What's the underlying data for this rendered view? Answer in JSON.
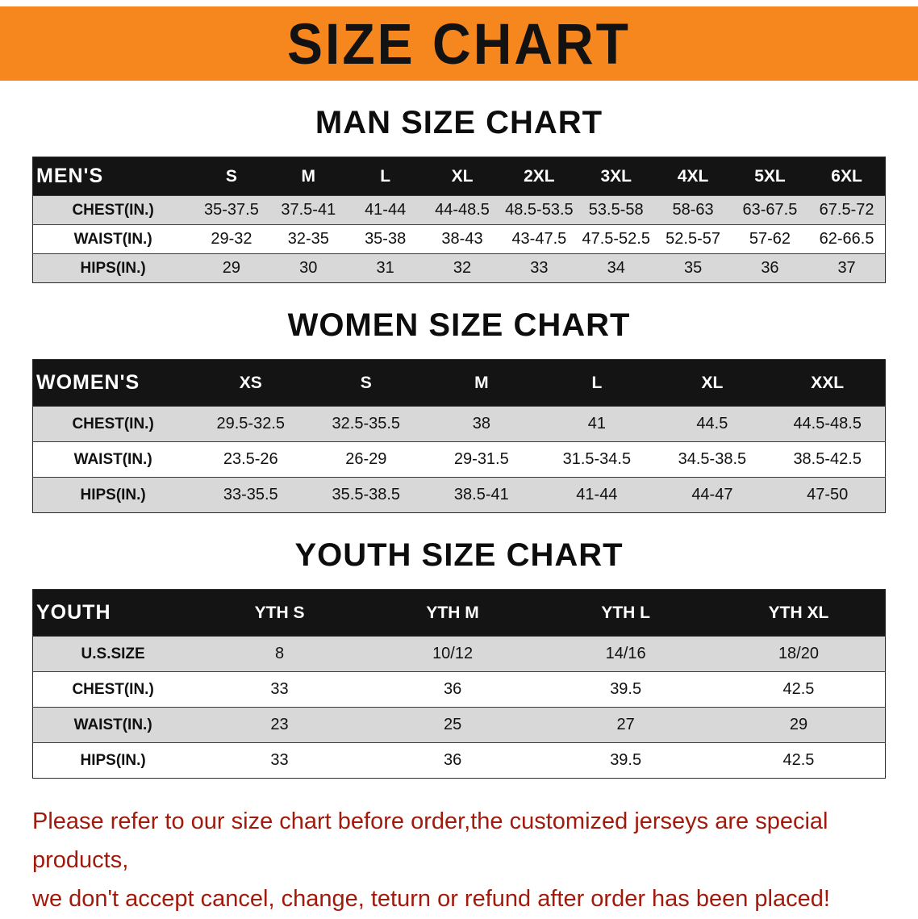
{
  "banner": {
    "title": "SIZE CHART"
  },
  "colors": {
    "banner_bg": "#f6871e",
    "table_header_bg": "#141414",
    "row_shade_bg": "#d8d8d8",
    "disclaimer_text": "#a11a0c"
  },
  "chart_data": [
    {
      "type": "table",
      "title": "MAN SIZE CHART",
      "header_label": "MEN'S",
      "columns": [
        "S",
        "M",
        "L",
        "XL",
        "2XL",
        "3XL",
        "4XL",
        "5XL",
        "6XL"
      ],
      "rows": [
        {
          "label": "CHEST(IN.)",
          "values": [
            "35-37.5",
            "37.5-41",
            "41-44",
            "44-48.5",
            "48.5-53.5",
            "53.5-58",
            "58-63",
            "63-67.5",
            "67.5-72"
          ]
        },
        {
          "label": "WAIST(IN.)",
          "values": [
            "29-32",
            "32-35",
            "35-38",
            "38-43",
            "43-47.5",
            "47.5-52.5",
            "52.5-57",
            "57-62",
            "62-66.5"
          ]
        },
        {
          "label": "HIPS(IN.)",
          "values": [
            "29",
            "30",
            "31",
            "32",
            "33",
            "34",
            "35",
            "36",
            "37"
          ]
        }
      ]
    },
    {
      "type": "table",
      "title": "WOMEN SIZE CHART",
      "header_label": "WOMEN'S",
      "columns": [
        "XS",
        "S",
        "M",
        "L",
        "XL",
        "XXL"
      ],
      "rows": [
        {
          "label": "CHEST(IN.)",
          "values": [
            "29.5-32.5",
            "32.5-35.5",
            "38",
            "41",
            "44.5",
            "44.5-48.5"
          ]
        },
        {
          "label": "WAIST(IN.)",
          "values": [
            "23.5-26",
            "26-29",
            "29-31.5",
            "31.5-34.5",
            "34.5-38.5",
            "38.5-42.5"
          ]
        },
        {
          "label": "HIPS(IN.)",
          "values": [
            "33-35.5",
            "35.5-38.5",
            "38.5-41",
            "41-44",
            "44-47",
            "47-50"
          ]
        }
      ]
    },
    {
      "type": "table",
      "title": "YOUTH SIZE CHART",
      "header_label": "YOUTH",
      "columns": [
        "YTH S",
        "YTH M",
        "YTH L",
        "YTH XL"
      ],
      "rows": [
        {
          "label": "U.S.SIZE",
          "values": [
            "8",
            "10/12",
            "14/16",
            "18/20"
          ]
        },
        {
          "label": "CHEST(IN.)",
          "values": [
            "33",
            "36",
            "39.5",
            "42.5"
          ]
        },
        {
          "label": "WAIST(IN.)",
          "values": [
            "23",
            "25",
            "27",
            "29"
          ]
        },
        {
          "label": "HIPS(IN.)",
          "values": [
            "33",
            "36",
            "39.5",
            "42.5"
          ]
        }
      ]
    }
  ],
  "footer": {
    "line1": "Please refer to our size chart before order,the customized jerseys are special products,",
    "line2": "we don't accept cancel, change, teturn or refund after order has been placed!"
  }
}
